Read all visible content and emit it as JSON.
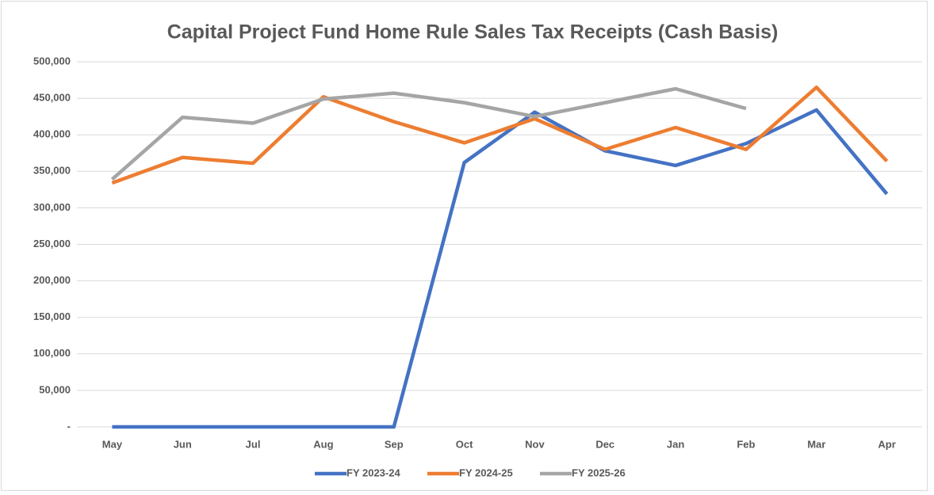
{
  "chart_data": {
    "type": "line",
    "title": "Capital Project Fund Home Rule Sales Tax Receipts (Cash Basis)",
    "categories": [
      "May",
      "Jun",
      "Jul",
      "Aug",
      "Sep",
      "Oct",
      "Nov",
      "Dec",
      "Jan",
      "Feb",
      "Mar",
      "Apr"
    ],
    "series": [
      {
        "name": "FY 2023-24",
        "color": "#4472c4",
        "values": [
          0,
          0,
          0,
          0,
          0,
          362000,
          431000,
          378000,
          358000,
          388000,
          434000,
          319000
        ]
      },
      {
        "name": "FY 2024-25",
        "color": "#ed7d31",
        "values": [
          334000,
          369000,
          361000,
          452000,
          418000,
          389000,
          422000,
          380000,
          410000,
          380000,
          465000,
          364000
        ]
      },
      {
        "name": "FY 2025-26",
        "color": "#a5a5a5",
        "values": [
          339000,
          424000,
          416000,
          449000,
          457000,
          444000,
          425000,
          444000,
          463000,
          436000,
          null,
          null
        ]
      }
    ],
    "ylim": [
      0,
      500000
    ],
    "yticks": [
      {
        "value": 0,
        "label": "-"
      },
      {
        "value": 50000,
        "label": "50,000"
      },
      {
        "value": 100000,
        "label": "100,000"
      },
      {
        "value": 150000,
        "label": "150,000"
      },
      {
        "value": 200000,
        "label": "200,000"
      },
      {
        "value": 250000,
        "label": "250,000"
      },
      {
        "value": 300000,
        "label": "300,000"
      },
      {
        "value": 350000,
        "label": "350,000"
      },
      {
        "value": 400000,
        "label": "400,000"
      },
      {
        "value": 450000,
        "label": "450,000"
      },
      {
        "value": 500000,
        "label": "500,000"
      }
    ],
    "grid": true,
    "legend": "bottom"
  }
}
